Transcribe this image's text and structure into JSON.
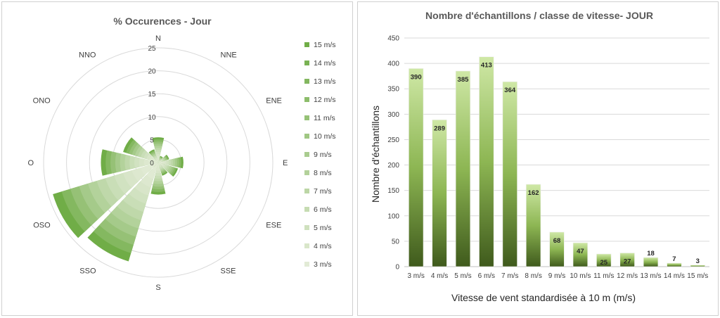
{
  "colors": {
    "light": "#e2ebd6",
    "dark": "#70ad47",
    "bar_top": "#c7e39b",
    "bar_bottom": "#4f6b25",
    "grid": "#d9d9d9"
  },
  "chart_data": [
    {
      "type": "radar",
      "title": "% Occurences  - Jour",
      "directions": [
        "N",
        "NNE",
        "ENE",
        "E",
        "ESE",
        "SSE",
        "S",
        "SSO",
        "OSO",
        "O",
        "ONO",
        "NNO"
      ],
      "radial_ticks": [
        "0",
        "5",
        "10",
        "15",
        "20",
        "25"
      ],
      "rmax": 25,
      "values": [
        5.5,
        1.5,
        2.5,
        5.5,
        4.5,
        3.0,
        7.0,
        22.5,
        24.0,
        12.5,
        8.0,
        3.0
      ],
      "legend": [
        "15 m/s",
        "14 m/s",
        "13 m/s",
        "12 m/s",
        "11 m/s",
        "10 m/s",
        "9 m/s",
        "8 m/s",
        "7 m/s",
        "6 m/s",
        "5 m/s",
        "4 m/s",
        "3 m/s"
      ]
    },
    {
      "type": "bar",
      "title": "Nombre d'échantillons / classe de vitesse- JOUR",
      "xlabel": "Vitesse de vent standardisée à 10 m (m/s)",
      "ylabel": "Nombre d'échantillons",
      "categories": [
        "3 m/s",
        "4 m/s",
        "5 m/s",
        "6 m/s",
        "7 m/s",
        "8 m/s",
        "9 m/s",
        "10 m/s",
        "11 m/s",
        "12 m/s",
        "13 m/s",
        "14 m/s",
        "15 m/s"
      ],
      "values": [
        390,
        289,
        385,
        413,
        364,
        162,
        68,
        47,
        25,
        27,
        18,
        7,
        3
      ],
      "yticks": [
        "0",
        "50",
        "100",
        "150",
        "200",
        "250",
        "300",
        "350",
        "400",
        "450"
      ],
      "ylim": [
        0,
        450
      ]
    }
  ]
}
